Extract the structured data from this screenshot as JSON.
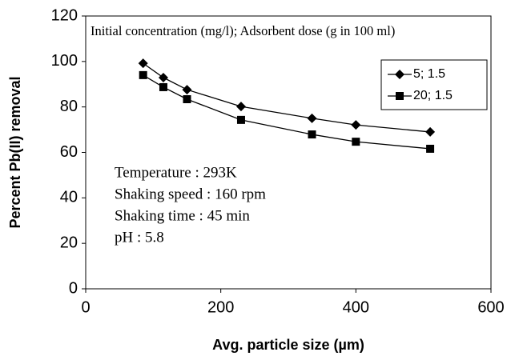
{
  "chart_data": {
    "type": "line",
    "x_label": "Avg. particle size (µm)",
    "y_label": "Percent Pb(II) removal",
    "annotations": [
      "Initial concentration (mg/l); Adsorbent dose (g in 100 ml)",
      "Temperature : 293K",
      "Shaking speed : 160 rpm",
      "Shaking time : 45 min",
      "pH : 5.8"
    ],
    "series": [
      {
        "name": "5; 1.5",
        "color": "#000000",
        "marker": "diamond",
        "x": [
          85,
          115,
          150,
          230,
          335,
          400,
          510
        ],
        "values": [
          99.2,
          92.9,
          87.6,
          80.2,
          75,
          72.1,
          69
        ]
      },
      {
        "name": "20; 1.5",
        "color": "#000000",
        "marker": "square",
        "x": [
          85,
          115,
          150,
          230,
          335,
          400,
          510
        ],
        "values": [
          94,
          88.7,
          83.4,
          74.3,
          67.9,
          64.7,
          61.6
        ]
      }
    ],
    "xlim": [
      0,
      600
    ],
    "xticks": [
      0,
      200,
      400,
      600
    ],
    "ylim": [
      0,
      120
    ],
    "yticks": [
      0,
      20,
      40,
      60,
      80,
      100,
      120
    ],
    "legend": "upper right",
    "grid": false
  }
}
